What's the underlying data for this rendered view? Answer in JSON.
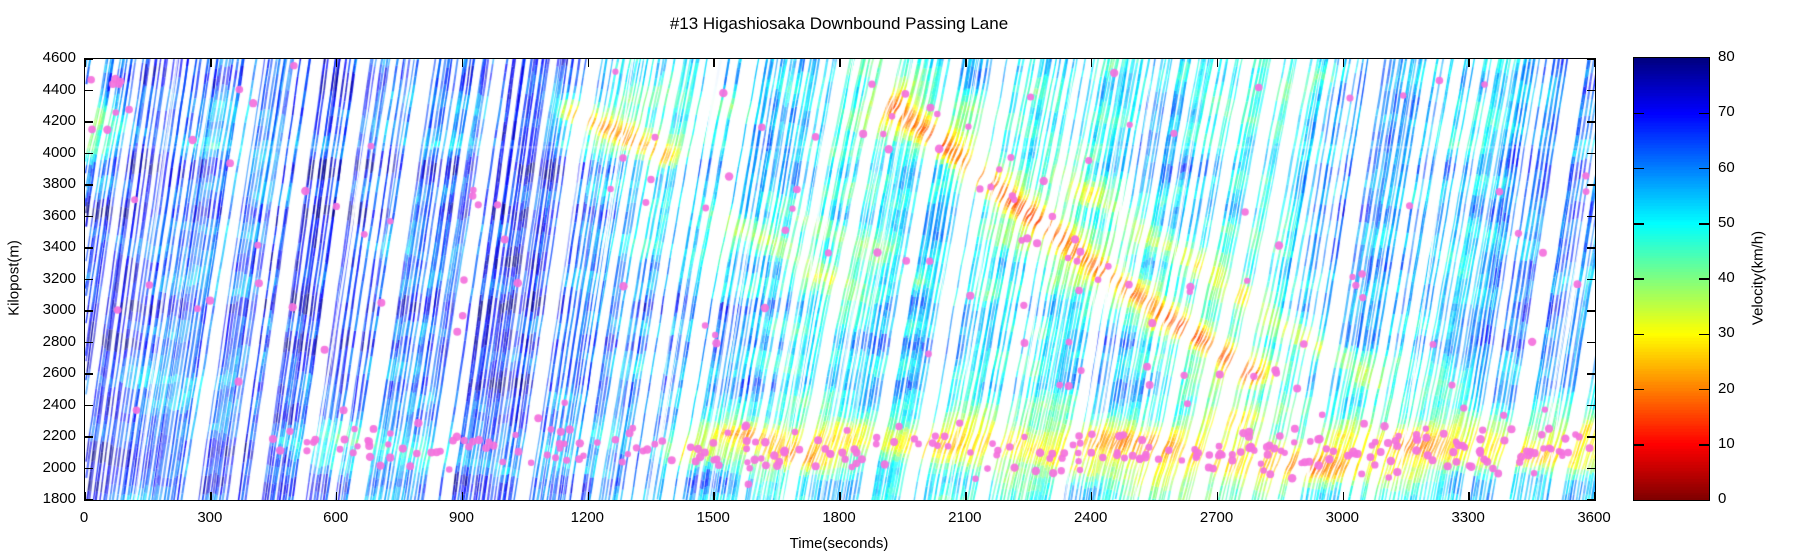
{
  "chart_data": {
    "type": "heatmap",
    "title": "#13 Higashiosaka Downbound Passing Lane",
    "xlabel": "Time(seconds)",
    "ylabel": "Kilopost(m)",
    "xlim": [
      0,
      3600
    ],
    "ylim": [
      1800,
      4600
    ],
    "x_ticks": [
      0,
      300,
      600,
      900,
      1200,
      1500,
      1800,
      2100,
      2400,
      2700,
      3000,
      3300,
      3600
    ],
    "y_ticks": [
      1800,
      2000,
      2200,
      2400,
      2600,
      2800,
      3000,
      3200,
      3400,
      3600,
      3800,
      4000,
      4200,
      4400,
      4600
    ],
    "grid": false,
    "legend": "none",
    "colorbar": {
      "label": "Velocity(km/h)",
      "min": 0,
      "max": 80,
      "ticks": [
        0,
        10,
        20,
        30,
        40,
        50,
        60,
        70,
        80
      ],
      "colormap": "jet_reversed",
      "top_color": "#000080",
      "bottom_color": "#800000"
    },
    "overlay_scatter": {
      "marker": "dot",
      "color": "#f472de",
      "radius": 3.7
    },
    "seed": 20240613,
    "render": {
      "base": [
        [
          0,
          63
        ],
        [
          1150,
          63
        ],
        [
          1450,
          53
        ],
        [
          2850,
          52
        ],
        [
          3100,
          57
        ],
        [
          3600,
          57
        ]
      ],
      "fast_bands": [
        {
          "kp": 4450,
          "sigma": 60,
          "t0": 0,
          "t1": 900,
          "amp": 6,
          "ampOut": 1
        },
        {
          "kp": 3880,
          "sigma": 45,
          "t0": 0,
          "t1": 1000,
          "amp": 12,
          "ampOut": 7
        },
        {
          "kp": 3600,
          "sigma": 40,
          "t0": 0,
          "t1": 800,
          "amp": 11,
          "ampOut": 6
        },
        {
          "kp": 3270,
          "sigma": 35,
          "t0": 0,
          "t1": 1400,
          "amp": 6,
          "ampOut": 4
        },
        {
          "kp": 3000,
          "sigma": 45,
          "t0": 0,
          "t1": 1400,
          "amp": 11,
          "ampOut": 5
        },
        {
          "kp": 2770,
          "sigma": 40,
          "t0": 0,
          "t1": 1600,
          "amp": 9,
          "ampOut": 7
        },
        {
          "kp": 2510,
          "sigma": 35,
          "t0": 600,
          "t1": 1500,
          "amp": 8,
          "ampOut": 4
        },
        {
          "kp": 2300,
          "sigma": 30,
          "t0": 0,
          "t1": 800,
          "amp": 6,
          "ampOut": 2
        },
        {
          "kp": 2060,
          "sigma": 55,
          "t0": 0,
          "t1": 1430,
          "amp": 10,
          "ampOut": 0
        },
        {
          "kp": 1880,
          "sigma": 40,
          "t0": 0,
          "t1": 1500,
          "amp": 8,
          "ampOut": 2
        }
      ],
      "calm_lines": [
        {
          "kp": 4040,
          "sigma": 14,
          "target": 52,
          "strength": 0.6,
          "t0": 0,
          "t1": 3600
        },
        {
          "kp": 2530,
          "sigma": 28,
          "target": 50,
          "strength": 0.55,
          "t0": 0,
          "t1": 560
        }
      ],
      "blobs": [
        {
          "t": 20,
          "kp": 4150,
          "rt": 80,
          "rkp": 300,
          "target": 38,
          "w": 0.8
        },
        {
          "t": 430,
          "kp": 3950,
          "rt": 90,
          "rkp": 350,
          "target": 50,
          "w": 0.4
        },
        {
          "t": 1600,
          "kp": 3420,
          "rt": 260,
          "rkp": 240,
          "target": 38,
          "w": 0.5,
          "patchy": 1
        },
        {
          "t": 1920,
          "kp": 3170,
          "rt": 200,
          "rkp": 180,
          "target": 40,
          "w": 0.45,
          "patchy": 1
        },
        {
          "t": 2060,
          "kp": 4180,
          "rt": 170,
          "rkp": 150,
          "target": 34,
          "w": 0.55
        },
        {
          "t": 3150,
          "kp": 2550,
          "rt": 260,
          "rkp": 200,
          "target": 43,
          "w": 0.45,
          "patchy": 1
        },
        {
          "t": 2950,
          "kp": 4480,
          "rt": 70,
          "rkp": 90,
          "target": 35,
          "w": 0.55
        },
        {
          "t": 2700,
          "kp": 4420,
          "rt": 90,
          "rkp": 160,
          "target": 42,
          "w": 0.45
        }
      ],
      "waves": [
        {
          "pts": [
            [
              1930,
              4290
            ],
            [
              2110,
              3900
            ],
            [
              2380,
              3330
            ],
            [
              2780,
              2580
            ]
          ],
          "sigma": 55,
          "target": 15,
          "w": 0.9,
          "fsigma": 150,
          "ftarget": 33,
          "fw": 0.6
        },
        {
          "pts": [
            [
              2330,
              3830
            ],
            [
              3080,
              2520
            ]
          ],
          "sigma": 48,
          "target": 29,
          "w": 0.7,
          "fsigma": 110,
          "ftarget": 40,
          "fw": 0.4
        },
        {
          "pts": [
            [
              1165,
              4240
            ],
            [
              1380,
              3980
            ]
          ],
          "sigma": 55,
          "target": 21,
          "w": 0.9,
          "fsigma": 120,
          "ftarget": 35,
          "fw": 0.55
        },
        {
          "pts": [
            [
              1280,
              4330
            ],
            [
              1560,
              4250
            ]
          ],
          "sigma": 70,
          "target": 38,
          "w": 0.5,
          "fsigma": 0,
          "ftarget": 0,
          "fw": 0
        },
        {
          "pts": [
            [
              1480,
              3640
            ],
            [
              1830,
              3120
            ]
          ],
          "sigma": 55,
          "target": 34,
          "w": 0.6,
          "fsigma": 0,
          "ftarget": 0,
          "fw": 0
        },
        {
          "pts": [
            [
              1720,
              3560
            ],
            [
              2060,
              3060
            ]
          ],
          "sigma": 50,
          "target": 36,
          "w": 0.5,
          "fsigma": 0,
          "ftarget": 0,
          "fw": 0
        }
      ],
      "bottom_band": {
        "ctrl": [
          [
            380,
            46,
            0
          ],
          [
            540,
            36,
            0.6
          ],
          [
            950,
            37,
            0.55
          ],
          [
            1060,
            45,
            0.35
          ],
          [
            1320,
            45,
            0.35
          ],
          [
            1430,
            27,
            0.85
          ],
          [
            2200,
            28,
            0.85
          ],
          [
            2600,
            26,
            0.85
          ],
          [
            3600,
            28,
            0.85
          ]
        ],
        "kp": 2110,
        "sigma": 130
      },
      "hotspots": [
        {
          "t": 1560,
          "kp": 2210,
          "rt": 90,
          "rkp": 60,
          "target": 18,
          "w": 0.85
        },
        {
          "t": 1700,
          "kp": 2060,
          "rt": 80,
          "rkp": 70,
          "target": 20,
          "w": 0.8
        },
        {
          "t": 2060,
          "kp": 2150,
          "rt": 120,
          "rkp": 80,
          "target": 24,
          "w": 0.8
        },
        {
          "t": 2480,
          "kp": 2160,
          "rt": 120,
          "rkp": 90,
          "target": 18,
          "w": 0.85
        },
        {
          "t": 2900,
          "kp": 2000,
          "rt": 140,
          "rkp": 90,
          "target": 17,
          "w": 0.85
        },
        {
          "t": 3180,
          "kp": 2150,
          "rt": 100,
          "rkp": 80,
          "target": 22,
          "w": 0.8
        },
        {
          "t": 3430,
          "kp": 2060,
          "rt": 130,
          "rkp": 90,
          "target": 20,
          "w": 0.8
        },
        {
          "t": 2760,
          "kp": 2310,
          "rt": 90,
          "rkp": 70,
          "target": 25,
          "w": 0.7
        }
      ],
      "noise": {
        "amp1": 6.5,
        "amp2": 3.0
      },
      "trajectories": {
        "avg_headway_s": 7,
        "dt_s": 3,
        "gap_chance": 0.08
      },
      "white_streaks": {
        "major": [
          [
            530,
            2.2
          ],
          [
            1150,
            1.8
          ],
          [
            1345,
            4.5
          ],
          [
            1660,
            1.5
          ],
          [
            2355,
            2.4
          ],
          [
            2905,
            2.8
          ],
          [
            3125,
            2.0
          ],
          [
            3480,
            1.6
          ]
        ],
        "minor_n": 26
      },
      "dots": {
        "groups": [
          {
            "n": 215,
            "type": "band",
            "t0": 1320,
            "t1": 3600,
            "kp": 2110,
            "spread": 235
          },
          {
            "n": 62,
            "type": "band",
            "t0": 430,
            "t1": 1320,
            "kp": 2140,
            "spread": 195
          },
          {
            "n": 108,
            "type": "uniform",
            "t0": 0,
            "t1": 3600,
            "kp0": 2330,
            "kp1": 4560
          },
          {
            "n": 30,
            "type": "wave",
            "wave": 0,
            "tj": 260,
            "kj": 380
          },
          {
            "n": 8,
            "type": "uniform",
            "t0": 0,
            "t1": 130,
            "kp0": 3850,
            "kp1": 4500
          }
        ]
      }
    }
  }
}
